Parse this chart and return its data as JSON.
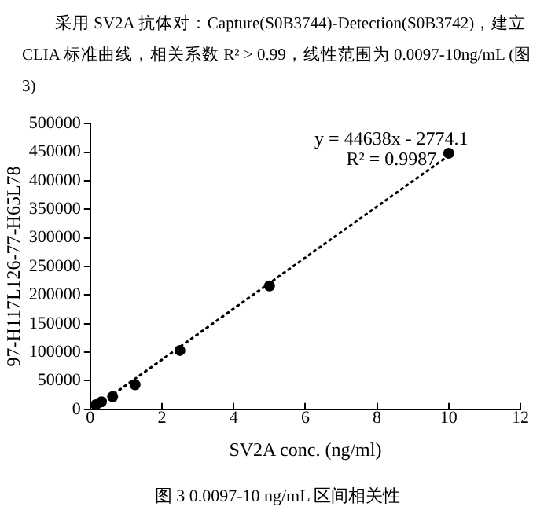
{
  "chart_data": {
    "type": "scatter",
    "title": "采用 SV2A 抗体对：Capture(S0B3744)-Detection(S0B3742)，建立 CLIA 标准曲线，相关系数 R² > 0.99，线性范围为 0.0097-10ng/mL (图 3)",
    "xlabel": "SV2A conc. (ng/ml)",
    "ylabel": "97-H117L126-77-H65L78",
    "series": [
      {
        "color": "#000000",
        "marker": "circle",
        "x": [
          0.156,
          0.3125,
          0.625,
          1.25,
          2.5,
          5,
          10
        ],
        "values": [
          8000,
          13000,
          22000,
          43000,
          103000,
          216000,
          448000
        ]
      },
      {
        "type": "line",
        "color": "#000000",
        "line_style": "dotted",
        "marker": "none",
        "x": [
          0.1,
          10
        ],
        "values": [
          2000,
          444000
        ]
      }
    ],
    "xlim": [
      0,
      12
    ],
    "xticks": [
      0,
      2,
      4,
      6,
      8,
      10,
      12
    ],
    "ylim": [
      0,
      500000
    ],
    "yticks": [
      0,
      50000,
      100000,
      150000,
      200000,
      250000,
      300000,
      350000,
      400000,
      450000,
      500000
    ],
    "grid": false,
    "legend": false,
    "annotations": [
      "y = 44638x - 2774.1",
      "R² = 0.9987",
      "图 3 0.0097-10 ng/mL 区间相关性"
    ]
  }
}
